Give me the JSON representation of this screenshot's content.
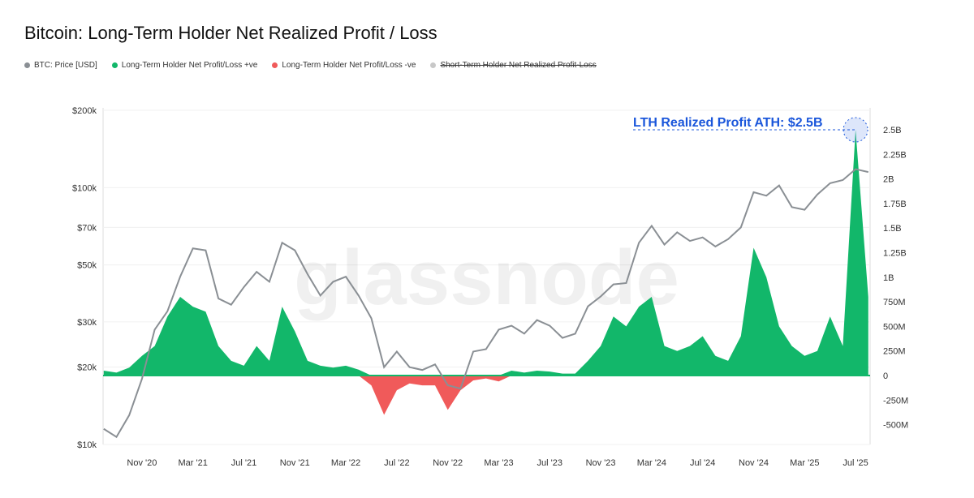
{
  "title": "Bitcoin: Long-Term Holder Net Realized Profit / Loss",
  "legend": [
    {
      "label": "BTC: Price [USD]",
      "color": "#8a8f94",
      "enabled": true
    },
    {
      "label": "Long-Term Holder Net Profit/Loss +ve",
      "color": "#12b76a",
      "enabled": true
    },
    {
      "label": "Long-Term Holder Net Profit/Loss -ve",
      "color": "#f05a5a",
      "enabled": true
    },
    {
      "label": "Short-Term Holder Net Realized Profit-Loss",
      "color": "#c8c8c8",
      "enabled": false
    }
  ],
  "watermark": "glassnode",
  "annotation": {
    "text": "LTH Realized Profit ATH: $2.5B",
    "color": "#1a56db"
  },
  "chart_data": {
    "type": "line+area",
    "title": "Bitcoin: Long-Term Holder Net Realized Profit / Loss",
    "x_ticks": [
      "Nov '20",
      "Mar '21",
      "Jul '21",
      "Nov '21",
      "Mar '22",
      "Jul '22",
      "Nov '22",
      "Mar '23",
      "Jul '23",
      "Nov '23",
      "Mar '24",
      "Jul '24",
      "Nov '24",
      "Mar '25",
      "Jul '25"
    ],
    "y_left": {
      "scale": "log",
      "range": [
        10000,
        200000
      ],
      "ticks": [
        [
          10000,
          "$10k"
        ],
        [
          20000,
          "$20k"
        ],
        [
          30000,
          "$30k"
        ],
        [
          50000,
          "$50k"
        ],
        [
          70000,
          "$70k"
        ],
        [
          100000,
          "$100k"
        ],
        [
          200000,
          "$200k"
        ]
      ]
    },
    "y_right": {
      "scale": "linear",
      "range_millions": [
        -700,
        2800
      ],
      "ticks": [
        [
          -500,
          "-500M"
        ],
        [
          -250,
          "-250M"
        ],
        [
          0,
          "0"
        ],
        [
          250,
          "250M"
        ],
        [
          500,
          "500M"
        ],
        [
          750,
          "750M"
        ],
        [
          1000,
          "1B"
        ],
        [
          1250,
          "1.25B"
        ],
        [
          1500,
          "1.5B"
        ],
        [
          1750,
          "1.75B"
        ],
        [
          2000,
          "2B"
        ],
        [
          2250,
          "2.25B"
        ],
        [
          2500,
          "2.5B"
        ]
      ]
    },
    "x": [
      "2020-08",
      "2020-09",
      "2020-10",
      "2020-11",
      "2020-12",
      "2021-01",
      "2021-02",
      "2021-03",
      "2021-04",
      "2021-05",
      "2021-06",
      "2021-07",
      "2021-08",
      "2021-09",
      "2021-10",
      "2021-11",
      "2021-12",
      "2022-01",
      "2022-02",
      "2022-03",
      "2022-04",
      "2022-05",
      "2022-06",
      "2022-07",
      "2022-08",
      "2022-09",
      "2022-10",
      "2022-11",
      "2022-12",
      "2023-01",
      "2023-02",
      "2023-03",
      "2023-04",
      "2023-05",
      "2023-06",
      "2023-07",
      "2023-08",
      "2023-09",
      "2023-10",
      "2023-11",
      "2023-12",
      "2024-01",
      "2024-02",
      "2024-03",
      "2024-04",
      "2024-05",
      "2024-06",
      "2024-07",
      "2024-08",
      "2024-09",
      "2024-10",
      "2024-11",
      "2024-12",
      "2025-01",
      "2025-02",
      "2025-03",
      "2025-04",
      "2025-05",
      "2025-06",
      "2025-07",
      "2025-08"
    ],
    "series": [
      {
        "name": "BTC: Price [USD]",
        "axis": "left",
        "values": [
          11500,
          10700,
          13000,
          18000,
          28000,
          33000,
          45000,
          58000,
          57000,
          37000,
          35000,
          41000,
          47000,
          43000,
          61000,
          57000,
          46000,
          38000,
          43000,
          45000,
          38000,
          31000,
          20000,
          23000,
          20000,
          19500,
          20500,
          17000,
          16500,
          23000,
          23500,
          28000,
          29000,
          27000,
          30500,
          29000,
          26000,
          27000,
          34500,
          37700,
          42000,
          42500,
          61000,
          71000,
          60000,
          67000,
          62000,
          64000,
          59000,
          63000,
          70000,
          96000,
          93000,
          102000,
          84000,
          82000,
          94000,
          104000,
          107000,
          118000,
          115000
        ]
      },
      {
        "name": "Long-Term Holder Net Profit/Loss",
        "axis": "right",
        "unit": "USD millions",
        "values": [
          50,
          30,
          80,
          200,
          300,
          600,
          800,
          700,
          650,
          300,
          150,
          100,
          300,
          150,
          700,
          450,
          150,
          100,
          80,
          100,
          60,
          -100,
          -400,
          -150,
          -80,
          -100,
          -100,
          -350,
          -150,
          -50,
          -30,
          -60,
          50,
          30,
          50,
          40,
          20,
          20,
          150,
          300,
          600,
          500,
          700,
          800,
          300,
          250,
          300,
          400,
          200,
          150,
          400,
          1300,
          1000,
          500,
          300,
          200,
          250,
          600,
          300,
          2500,
          800
        ]
      }
    ],
    "grid": "horizontal"
  }
}
